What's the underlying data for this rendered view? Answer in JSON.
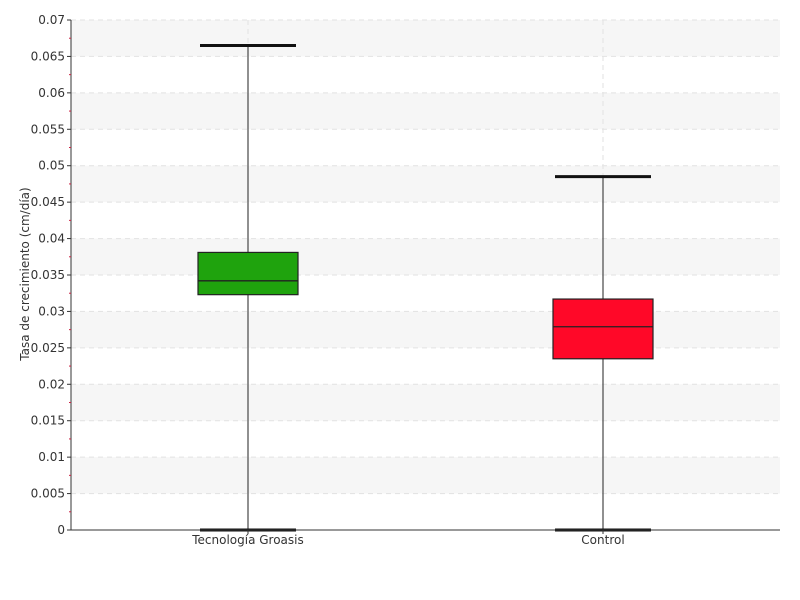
{
  "chart_data": {
    "type": "boxplot",
    "title": "",
    "xlabel": "",
    "ylabel": "Tasa de crecimiento (cm/día)",
    "ylim": [
      0,
      0.07
    ],
    "y_ticks": [
      "0",
      "0.005",
      "0.01",
      "0.015",
      "0.02",
      "0.025",
      "0.03",
      "0.035",
      "0.04",
      "0.045",
      "0.05",
      "0.055",
      "0.06",
      "0.065",
      "0.07"
    ],
    "grid": true,
    "legend": "none",
    "categories": [
      "Tecnología Groasis",
      "Control"
    ],
    "series": [
      {
        "min": 0.0,
        "q1": 0.0323,
        "median": 0.0342,
        "q3": 0.0381,
        "max": 0.0665,
        "color": "#1fa30d"
      },
      {
        "min": 0.0,
        "q1": 0.0235,
        "median": 0.0279,
        "q3": 0.0317,
        "max": 0.0485,
        "color": "#ff0828"
      }
    ]
  }
}
